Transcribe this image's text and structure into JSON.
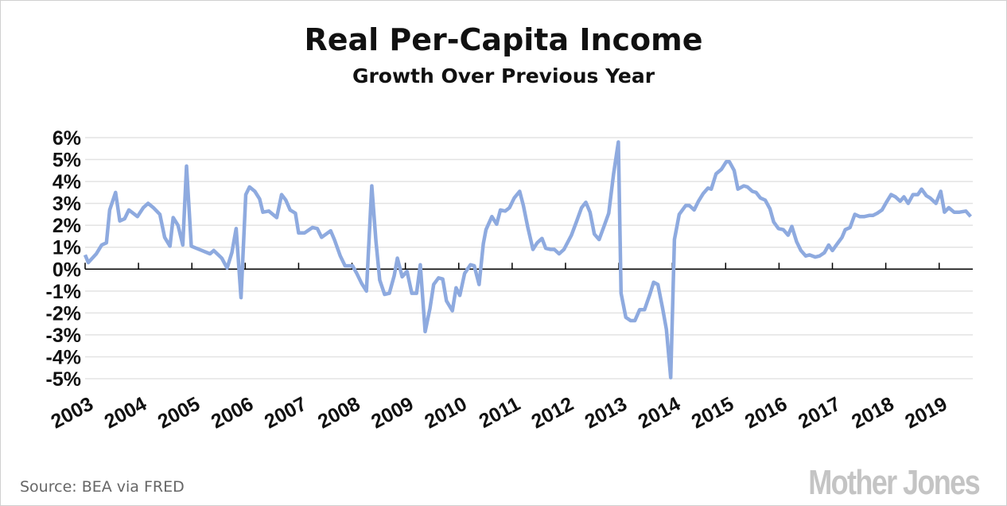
{
  "chart_data": {
    "type": "line",
    "title": "Real Per-Capita Income",
    "subtitle": "Growth Over Previous Year",
    "xlabel": "",
    "ylabel": "",
    "source": "Source: BEA via FRED",
    "logo": "Mother Jones",
    "line_color": "#8eaadf",
    "grid": true,
    "ylim": [
      -5,
      6
    ],
    "xlim": [
      2003,
      2019.63
    ],
    "yticks": [
      6,
      5,
      4,
      3,
      2,
      1,
      0,
      -1,
      -2,
      -3,
      -4,
      -5
    ],
    "ytick_labels": [
      "6%",
      "5%",
      "4%",
      "3%",
      "2%",
      "1%",
      "0%",
      "-1%",
      "-2%",
      "-3%",
      "-4%",
      "-5%"
    ],
    "xticks": [
      2003,
      2004,
      2005,
      2006,
      2007,
      2008,
      2009,
      2010,
      2011,
      2012,
      2013,
      2014,
      2015,
      2016,
      2017,
      2018,
      2019
    ],
    "xtick_labels": [
      "2003",
      "2004",
      "2005",
      "2006",
      "2007",
      "2008",
      "2009",
      "2010",
      "2011",
      "2012",
      "2013",
      "2014",
      "2015",
      "2016",
      "2017",
      "2018",
      "2019"
    ],
    "series": [
      {
        "name": "Real per-capita income growth (%)",
        "x": [
          2003.0,
          2003.06,
          2003.21,
          2003.31,
          2003.4,
          2003.46,
          2003.57,
          2003.65,
          2003.74,
          2003.82,
          2003.98,
          2004.09,
          2004.18,
          2004.28,
          2004.4,
          2004.49,
          2004.59,
          2004.65,
          2004.74,
          2004.83,
          2004.9,
          2004.99,
          2005.19,
          2005.34,
          2005.41,
          2005.56,
          2005.66,
          2005.75,
          2005.83,
          2005.92,
          2006.01,
          2006.08,
          2006.18,
          2006.27,
          2006.33,
          2006.44,
          2006.59,
          2006.68,
          2006.76,
          2006.84,
          2006.94,
          2007.0,
          2007.11,
          2007.26,
          2007.35,
          2007.43,
          2007.6,
          2007.67,
          2007.78,
          2007.87,
          2008.01,
          2008.09,
          2008.18,
          2008.27,
          2008.37,
          2008.45,
          2008.52,
          2008.61,
          2008.7,
          2008.79,
          2008.85,
          2008.94,
          2009.03,
          2009.12,
          2009.21,
          2009.28,
          2009.37,
          2009.46,
          2009.53,
          2009.62,
          2009.7,
          2009.77,
          2009.88,
          2009.95,
          2010.02,
          2010.11,
          2010.22,
          2010.29,
          2010.38,
          2010.46,
          2010.51,
          2010.62,
          2010.71,
          2010.78,
          2010.87,
          2010.95,
          2011.04,
          2011.14,
          2011.21,
          2011.29,
          2011.39,
          2011.47,
          2011.56,
          2011.63,
          2011.72,
          2011.79,
          2011.88,
          2011.97,
          2012.11,
          2012.21,
          2012.3,
          2012.38,
          2012.46,
          2012.54,
          2012.63,
          2012.72,
          2012.81,
          2012.9,
          2012.99,
          2013.04,
          2013.13,
          2013.22,
          2013.3,
          2013.39,
          2013.48,
          2013.58,
          2013.65,
          2013.73,
          2013.82,
          2013.89,
          2013.97,
          2014.04,
          2014.13,
          2014.25,
          2014.32,
          2014.41,
          2014.49,
          2014.58,
          2014.67,
          2014.73,
          2014.82,
          2014.92,
          2015.01,
          2015.07,
          2015.16,
          2015.23,
          2015.34,
          2015.41,
          2015.5,
          2015.57,
          2015.65,
          2015.74,
          2015.83,
          2015.9,
          2015.99,
          2016.08,
          2016.17,
          2016.24,
          2016.33,
          2016.41,
          2016.5,
          2016.57,
          2016.68,
          2016.76,
          2016.85,
          2016.93,
          2017.0,
          2017.09,
          2017.18,
          2017.24,
          2017.33,
          2017.42,
          2017.51,
          2017.6,
          2017.69,
          2017.76,
          2017.84,
          2017.93,
          2018.01,
          2018.1,
          2018.18,
          2018.27,
          2018.34,
          2018.42,
          2018.51,
          2018.6,
          2018.67,
          2018.76,
          2018.83,
          2018.94,
          2019.03,
          2019.1,
          2019.18,
          2019.28,
          2019.38,
          2019.5,
          2019.59
        ],
        "y": [
          0.65,
          0.3,
          0.7,
          1.1,
          1.2,
          2.7,
          3.5,
          2.2,
          2.3,
          2.7,
          2.4,
          2.8,
          3.0,
          2.8,
          2.5,
          1.45,
          1.05,
          2.35,
          2.0,
          1.1,
          4.7,
          1.05,
          0.85,
          0.7,
          0.85,
          0.5,
          0.05,
          0.75,
          1.85,
          -1.3,
          3.4,
          3.75,
          3.55,
          3.2,
          2.6,
          2.65,
          2.35,
          3.4,
          3.15,
          2.7,
          2.55,
          1.65,
          1.65,
          1.9,
          1.85,
          1.45,
          1.75,
          1.35,
          0.6,
          0.15,
          0.15,
          -0.2,
          -0.65,
          -1.0,
          3.8,
          1.25,
          -0.5,
          -1.15,
          -1.1,
          -0.3,
          0.5,
          -0.35,
          -0.1,
          -1.1,
          -1.1,
          0.2,
          -2.85,
          -1.8,
          -0.7,
          -0.4,
          -0.45,
          -1.45,
          -1.9,
          -0.85,
          -1.2,
          -0.2,
          0.2,
          0.15,
          -0.7,
          1.15,
          1.8,
          2.4,
          2.05,
          2.7,
          2.65,
          2.8,
          3.25,
          3.55,
          2.9,
          1.95,
          0.9,
          1.2,
          1.4,
          0.95,
          0.9,
          0.9,
          0.7,
          0.9,
          1.55,
          2.2,
          2.8,
          3.05,
          2.6,
          1.6,
          1.35,
          1.95,
          2.55,
          4.35,
          5.8,
          -1.1,
          -2.2,
          -2.35,
          -2.35,
          -1.85,
          -1.85,
          -1.15,
          -0.6,
          -0.7,
          -1.8,
          -2.75,
          -4.95,
          1.35,
          2.5,
          2.9,
          2.9,
          2.7,
          3.1,
          3.45,
          3.7,
          3.65,
          4.35,
          4.55,
          4.9,
          4.9,
          4.5,
          3.65,
          3.8,
          3.75,
          3.55,
          3.5,
          3.25,
          3.15,
          2.75,
          2.15,
          1.85,
          1.8,
          1.55,
          1.95,
          1.25,
          0.85,
          0.6,
          0.65,
          0.55,
          0.6,
          0.75,
          1.1,
          0.85,
          1.15,
          1.45,
          1.8,
          1.9,
          2.5,
          2.4,
          2.4,
          2.45,
          2.45,
          2.55,
          2.7,
          3.05,
          3.4,
          3.3,
          3.1,
          3.3,
          3.0,
          3.4,
          3.4,
          3.65,
          3.35,
          3.25,
          3.0,
          3.55,
          2.6,
          2.8,
          2.6,
          2.6,
          2.65,
          2.4
        ]
      }
    ]
  }
}
